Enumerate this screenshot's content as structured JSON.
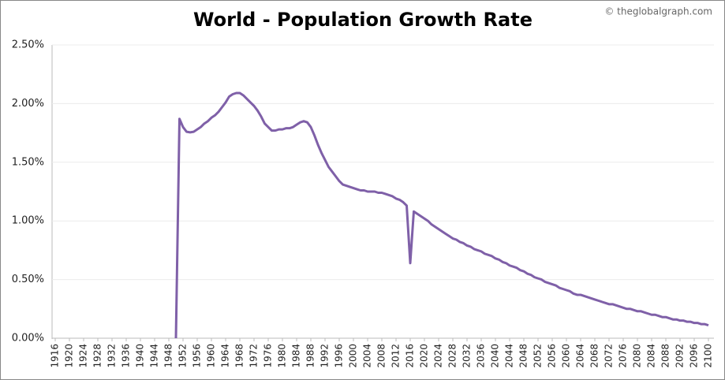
{
  "chart_data": {
    "type": "line",
    "title": "World - Population Growth Rate",
    "credit": "© theglobalgraph.com",
    "xlim": [
      1916,
      2100
    ],
    "xticks": [
      1916,
      1920,
      1924,
      1928,
      1932,
      1936,
      1940,
      1944,
      1948,
      1952,
      1956,
      1960,
      1964,
      1968,
      1972,
      1976,
      1980,
      1984,
      1988,
      1992,
      1996,
      2000,
      2004,
      2008,
      2012,
      2016,
      2020,
      2024,
      2028,
      2032,
      2036,
      2040,
      2044,
      2048,
      2052,
      2056,
      2060,
      2064,
      2068,
      2072,
      2076,
      2080,
      2084,
      2088,
      2092,
      2096,
      2100
    ],
    "ylim": [
      0,
      2.5
    ],
    "yticks": [
      {
        "value": 0,
        "label": "0.00%"
      },
      {
        "value": 0.5,
        "label": "0.50%"
      },
      {
        "value": 1,
        "label": "1.00%"
      },
      {
        "value": 1.5,
        "label": "1.50%"
      },
      {
        "value": 2,
        "label": "2.00%"
      },
      {
        "value": 2.5,
        "label": "2.50%"
      }
    ],
    "grid": true,
    "x": [
      1950,
      1951,
      1952,
      1953,
      1954,
      1955,
      1956,
      1957,
      1958,
      1959,
      1960,
      1961,
      1962,
      1963,
      1964,
      1965,
      1966,
      1967,
      1968,
      1969,
      1970,
      1971,
      1972,
      1973,
      1974,
      1975,
      1976,
      1977,
      1978,
      1979,
      1980,
      1981,
      1982,
      1983,
      1984,
      1985,
      1986,
      1987,
      1988,
      1989,
      1990,
      1991,
      1992,
      1993,
      1994,
      1995,
      1996,
      1997,
      1998,
      1999,
      2000,
      2001,
      2002,
      2003,
      2004,
      2005,
      2006,
      2007,
      2008,
      2009,
      2010,
      2011,
      2012,
      2013,
      2014,
      2015,
      2016,
      2017,
      2018,
      2019,
      2020,
      2021,
      2022,
      2023,
      2024,
      2025,
      2026,
      2027,
      2028,
      2029,
      2030,
      2031,
      2032,
      2033,
      2034,
      2035,
      2036,
      2037,
      2038,
      2039,
      2040,
      2041,
      2042,
      2043,
      2044,
      2045,
      2046,
      2047,
      2048,
      2049,
      2050,
      2051,
      2052,
      2053,
      2054,
      2055,
      2056,
      2057,
      2058,
      2059,
      2060,
      2061,
      2062,
      2063,
      2064,
      2065,
      2066,
      2067,
      2068,
      2069,
      2070,
      2071,
      2072,
      2073,
      2074,
      2075,
      2076,
      2077,
      2078,
      2079,
      2080,
      2081,
      2082,
      2083,
      2084,
      2085,
      2086,
      2087,
      2088,
      2089,
      2090,
      2091,
      2092,
      2093,
      2094,
      2095,
      2096,
      2097,
      2098,
      2099,
      2100
    ],
    "series": [
      {
        "color": "#7f60a8",
        "values": [
          0,
          1.87,
          1.8,
          1.76,
          1.755,
          1.76,
          1.78,
          1.8,
          1.83,
          1.85,
          1.88,
          1.9,
          1.93,
          1.97,
          2.01,
          2.06,
          2.08,
          2.09,
          2.09,
          2.07,
          2.04,
          2.01,
          1.98,
          1.94,
          1.89,
          1.83,
          1.8,
          1.77,
          1.77,
          1.78,
          1.78,
          1.79,
          1.79,
          1.8,
          1.82,
          1.84,
          1.85,
          1.84,
          1.8,
          1.73,
          1.65,
          1.58,
          1.52,
          1.46,
          1.42,
          1.38,
          1.34,
          1.31,
          1.3,
          1.29,
          1.28,
          1.27,
          1.26,
          1.26,
          1.25,
          1.25,
          1.25,
          1.24,
          1.24,
          1.23,
          1.22,
          1.21,
          1.19,
          1.18,
          1.16,
          1.13,
          0.64,
          1.08,
          1.06,
          1.04,
          1.02,
          1.0,
          0.97,
          0.95,
          0.93,
          0.91,
          0.89,
          0.87,
          0.85,
          0.84,
          0.82,
          0.81,
          0.79,
          0.78,
          0.76,
          0.75,
          0.74,
          0.72,
          0.71,
          0.7,
          0.68,
          0.67,
          0.65,
          0.64,
          0.62,
          0.61,
          0.6,
          0.58,
          0.57,
          0.55,
          0.54,
          0.52,
          0.51,
          0.5,
          0.48,
          0.47,
          0.46,
          0.45,
          0.43,
          0.42,
          0.41,
          0.4,
          0.38,
          0.37,
          0.37,
          0.36,
          0.35,
          0.34,
          0.33,
          0.32,
          0.31,
          0.3,
          0.29,
          0.29,
          0.28,
          0.27,
          0.26,
          0.25,
          0.25,
          0.24,
          0.23,
          0.23,
          0.22,
          0.21,
          0.2,
          0.2,
          0.19,
          0.18,
          0.18,
          0.17,
          0.16,
          0.16,
          0.15,
          0.15,
          0.14,
          0.14,
          0.13,
          0.13,
          0.12,
          0.12,
          0.11
        ]
      }
    ]
  }
}
